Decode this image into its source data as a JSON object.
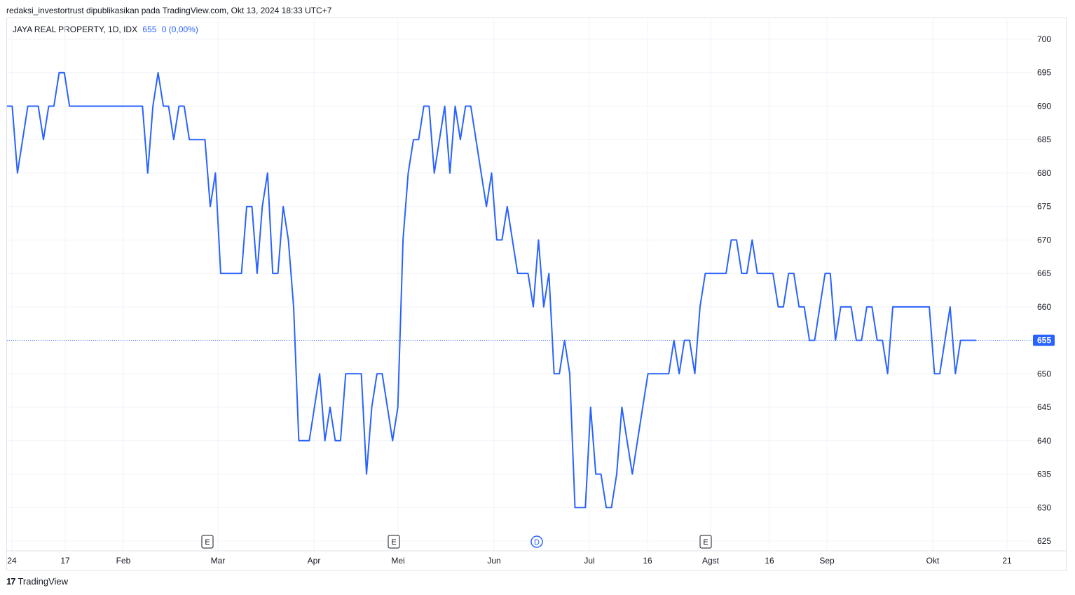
{
  "attribution": "redaksi_investortrust dipublikasikan pada TradingView.com, Okt 13, 2024 18:33 UTC+7",
  "legend": {
    "symbol": "JAYA REAL PROPERTY, 1D, IDX",
    "last": "655",
    "change": "0 (0,00%)"
  },
  "footer": {
    "brand": "TradingView",
    "logo_icon": "tradingview-logo-icon"
  },
  "colors": {
    "line": "#2962ff",
    "grid": "#f0f3fa",
    "text": "#131722",
    "price_tag": "#2962ff"
  },
  "chart_data": {
    "type": "line",
    "series": [
      {
        "values": [
          690,
          690,
          680,
          685,
          690,
          690,
          690,
          685,
          690,
          690,
          695,
          695,
          690,
          690,
          690,
          690,
          690,
          690,
          690,
          690,
          690,
          690,
          690,
          690,
          690,
          690,
          690,
          680,
          690,
          695,
          690,
          690,
          685,
          690,
          690,
          685,
          685,
          685,
          685,
          675,
          680,
          665,
          665,
          665,
          665,
          665,
          675,
          675,
          665,
          675,
          680,
          665,
          665,
          675,
          670,
          660,
          640,
          640,
          640,
          645,
          650,
          640,
          645,
          640,
          640,
          650,
          650,
          650,
          650,
          635,
          645,
          650,
          650,
          645,
          640,
          645,
          670,
          680,
          685,
          685,
          690,
          690,
          680,
          685,
          690,
          680,
          690,
          685,
          690,
          690,
          685,
          680,
          675,
          680,
          670,
          670,
          675,
          670,
          665,
          665,
          665,
          660,
          670,
          660,
          665,
          650,
          650,
          655,
          650,
          630,
          630,
          630,
          645,
          635,
          635,
          630,
          630,
          635,
          645,
          640,
          635,
          640,
          645,
          650,
          650,
          650,
          650,
          650,
          655,
          650,
          655,
          655,
          650,
          660,
          665,
          665,
          665,
          665,
          665,
          670,
          670,
          665,
          665,
          670,
          665,
          665,
          665,
          665,
          660,
          660,
          665,
          665,
          660,
          660,
          655,
          655,
          660,
          665,
          665,
          655,
          660,
          660,
          660,
          655,
          655,
          660,
          660,
          655,
          655,
          650,
          660,
          660,
          660,
          660,
          660,
          660,
          660,
          660,
          650,
          650,
          655,
          660,
          650,
          655,
          655,
          655,
          655
        ]
      }
    ],
    "x_ticks": [
      "24",
      "17",
      "Feb",
      "Mar",
      "Apr",
      "Mei",
      "Jun",
      "Jul",
      "16",
      "Agst",
      "16",
      "Sep",
      "Okt",
      "21"
    ],
    "y_ticks": [
      700,
      695,
      690,
      685,
      680,
      675,
      670,
      665,
      660,
      655,
      650,
      645,
      640,
      635,
      630,
      625
    ],
    "ylim": [
      625,
      700
    ],
    "last_price": 655,
    "events": [
      "E",
      "E",
      "D",
      "E"
    ]
  }
}
